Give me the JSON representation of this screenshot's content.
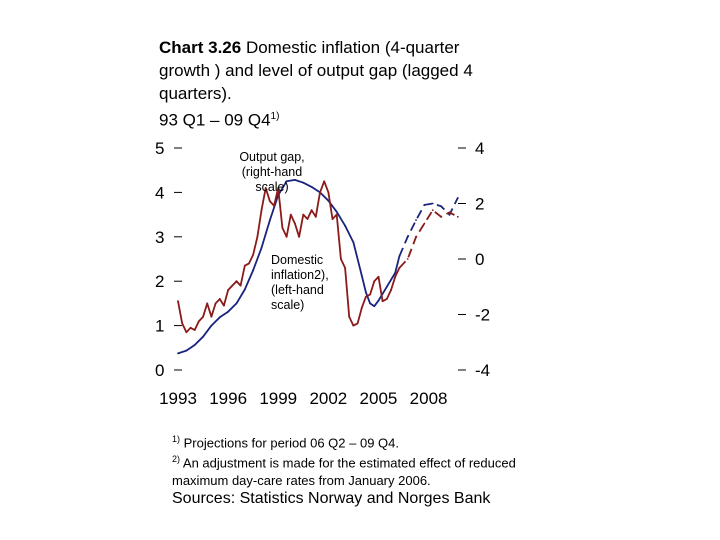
{
  "title": {
    "chart_no": "Chart 3.26",
    "text": "Domestic inflation (4-quarter growth ) and level of output gap (lagged 4 quarters).",
    "period": "93 Q1 – 09 Q4",
    "period_note": "1)"
  },
  "notes": {
    "n1_mark": "1)",
    "n1_text": "Projections for period 06 Q2 – 09 Q4.",
    "n2_mark": "2)",
    "n2_text": "An adjustment is made for the estimated effect of reduced maximum day-care rates from January 2006."
  },
  "source": "Sources: Statistics Norway and Norges Bank",
  "chart_data": {
    "type": "line",
    "x_ticks": [
      "1993",
      "1996",
      "1999",
      "2002",
      "2005",
      "2008"
    ],
    "xlim": [
      1993,
      2010
    ],
    "left_axis": {
      "ticks": [
        "0",
        "1",
        "2",
        "3",
        "4",
        "5"
      ],
      "ylim": [
        0,
        5
      ]
    },
    "right_axis": {
      "ticks": [
        "-4",
        "-2",
        "0",
        "2",
        "4"
      ],
      "ylim": [
        -4,
        4
      ]
    },
    "annotations": {
      "output_gap": [
        "Output gap,",
        "(right-hand",
        "scale)"
      ],
      "inflation": [
        "Domestic",
        "inflation2),",
        "(left-hand",
        "scale)"
      ]
    },
    "colors": {
      "output_gap": "#1a237e",
      "inflation": "#8b1a1a"
    },
    "series": [
      {
        "name": "Output gap (right-hand scale)",
        "axis": "right",
        "color": "#1a237e",
        "projection_from": 2006.25,
        "x": [
          1993.0,
          1993.5,
          1994.0,
          1994.5,
          1995.0,
          1995.5,
          1996.0,
          1996.5,
          1997.0,
          1997.5,
          1998.0,
          1998.5,
          1999.0,
          1999.5,
          2000.0,
          2000.5,
          2001.0,
          2001.5,
          2002.0,
          2002.5,
          2003.0,
          2003.5,
          2004.0,
          2004.25,
          2004.5,
          2004.75,
          2005.0,
          2005.5,
          2006.0,
          2006.25,
          2006.75,
          2007.25,
          2007.75,
          2008.25,
          2008.75,
          2009.25,
          2009.75
        ],
        "values": [
          -3.4,
          -3.3,
          -3.1,
          -2.8,
          -2.4,
          -2.1,
          -1.9,
          -1.6,
          -1.1,
          -0.4,
          0.4,
          1.4,
          2.3,
          2.8,
          2.85,
          2.75,
          2.6,
          2.4,
          2.1,
          1.7,
          1.2,
          0.6,
          -0.6,
          -1.2,
          -1.6,
          -1.7,
          -1.5,
          -1.0,
          -0.5,
          0.1,
          0.8,
          1.4,
          1.95,
          2.0,
          1.9,
          1.6,
          2.2
        ]
      },
      {
        "name": "Domestic inflation (left-hand scale)",
        "axis": "left",
        "color": "#8b1a1a",
        "projection_from": 2006.25,
        "x": [
          1993.0,
          1993.25,
          1993.5,
          1993.75,
          1994.0,
          1994.25,
          1994.5,
          1994.75,
          1995.0,
          1995.25,
          1995.5,
          1995.75,
          1996.0,
          1996.25,
          1996.5,
          1996.75,
          1997.0,
          1997.25,
          1997.5,
          1997.75,
          1998.0,
          1998.25,
          1998.5,
          1998.75,
          1999.0,
          1999.25,
          1999.5,
          1999.75,
          2000.0,
          2000.25,
          2000.5,
          2000.75,
          2001.0,
          2001.25,
          2001.5,
          2001.75,
          2002.0,
          2002.25,
          2002.5,
          2002.75,
          2003.0,
          2003.25,
          2003.5,
          2003.75,
          2004.0,
          2004.25,
          2004.5,
          2004.75,
          2005.0,
          2005.25,
          2005.5,
          2005.75,
          2006.0,
          2006.25,
          2006.75,
          2007.25,
          2007.75,
          2008.25,
          2008.75,
          2009.25,
          2009.75
        ],
        "values": [
          1.55,
          1.05,
          0.85,
          0.95,
          0.9,
          1.1,
          1.2,
          1.5,
          1.2,
          1.5,
          1.6,
          1.45,
          1.8,
          1.9,
          2.0,
          1.9,
          2.35,
          2.4,
          2.6,
          3.0,
          3.6,
          4.1,
          3.8,
          3.7,
          4.1,
          3.2,
          3.0,
          3.5,
          3.3,
          3.0,
          3.5,
          3.4,
          3.6,
          3.45,
          4.0,
          4.25,
          4.0,
          3.4,
          3.5,
          2.5,
          2.3,
          1.2,
          1.0,
          1.05,
          1.4,
          1.65,
          1.7,
          2.0,
          2.1,
          1.55,
          1.6,
          1.8,
          2.1,
          2.3,
          2.5,
          3.0,
          3.3,
          3.6,
          3.45,
          3.55,
          3.45
        ]
      }
    ]
  }
}
